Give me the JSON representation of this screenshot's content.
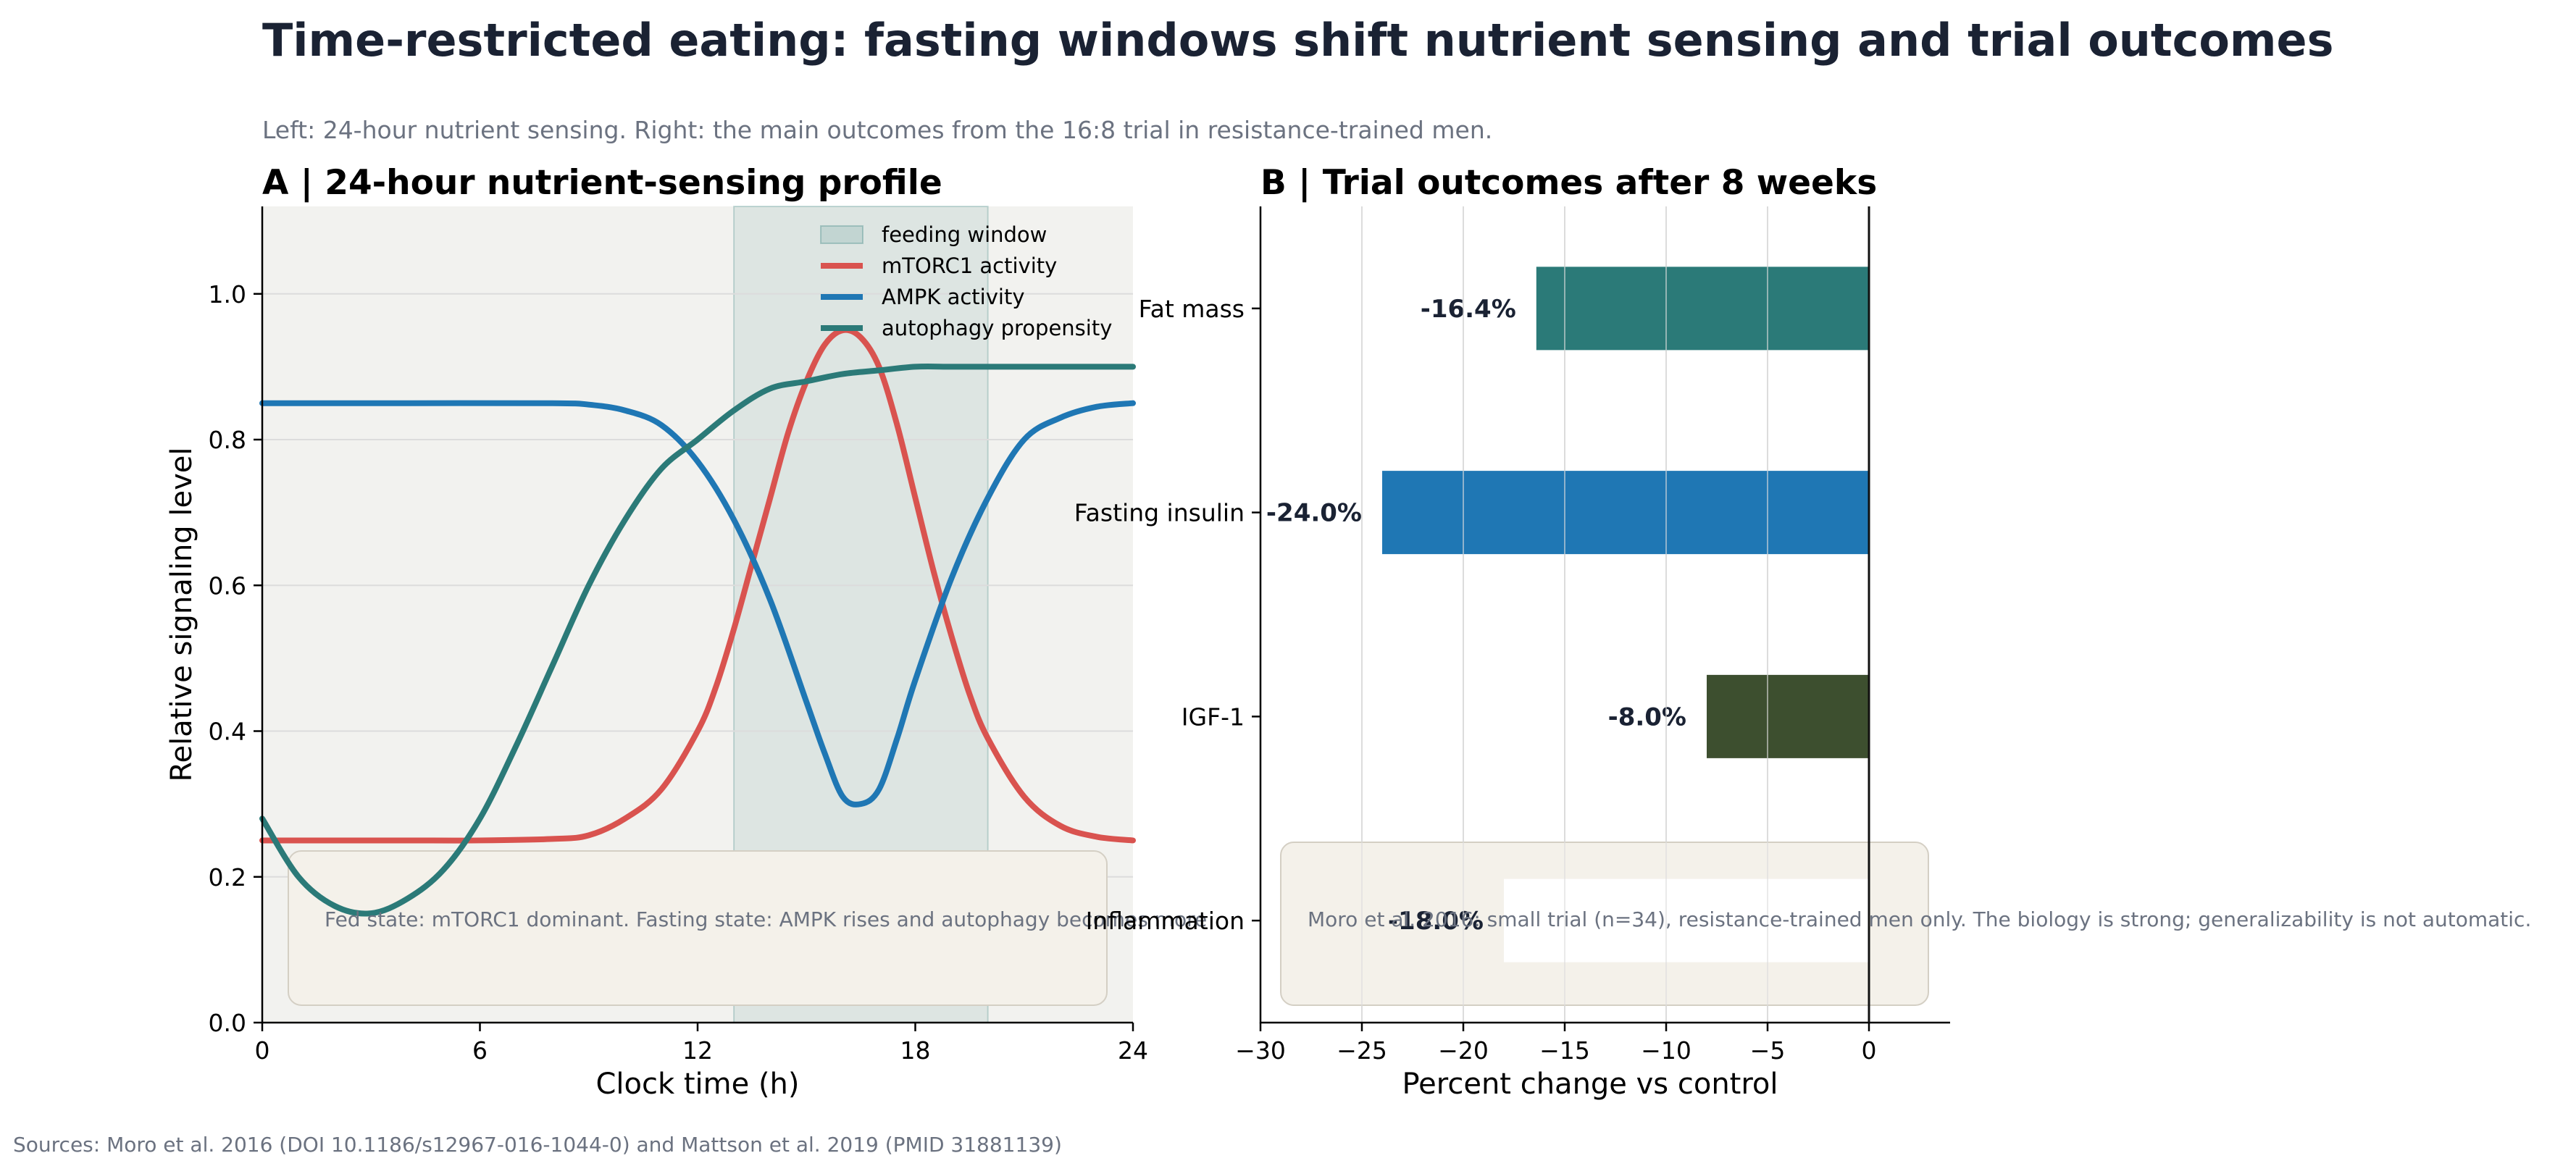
{
  "figure": {
    "title": "Time-restricted eating: fasting windows shift nutrient sensing and trial outcomes",
    "subtitle": "Left: 24-hour nutrient sensing. Right: the main outcomes from the 16:8 trial in resistance-trained men.",
    "source": "Sources: Moro et al. 2016 (DOI 10.1186/s12967-016-1044-0) and Mattson et al. 2019 (PMID 31881139)"
  },
  "chart_data": [
    {
      "type": "line",
      "title": "A  |  24-hour nutrient-sensing profile",
      "xlabel": "Clock time (h)",
      "ylabel": "Relative signaling level",
      "xlim": [
        0,
        24
      ],
      "ylim": [
        0,
        1.12
      ],
      "xticks": [
        0,
        6,
        12,
        18,
        24
      ],
      "yticks": [
        0.0,
        0.2,
        0.4,
        0.6,
        0.8,
        1.0
      ],
      "grid": "horizontal",
      "legend": "top-right",
      "shaded_region": {
        "name": "feeding window",
        "x": [
          13,
          20
        ],
        "color": "#2b7a78"
      },
      "series": [
        {
          "name": "mTORC1 activity",
          "color": "#d9534f",
          "x": [
            0,
            2,
            4,
            6,
            8,
            9,
            10,
            11,
            12,
            12.5,
            13,
            13.5,
            14,
            14.5,
            15,
            15.5,
            16,
            16.5,
            17,
            17.5,
            18,
            18.5,
            19,
            19.5,
            20,
            21,
            22,
            23,
            24
          ],
          "y": [
            0.25,
            0.25,
            0.25,
            0.25,
            0.252,
            0.257,
            0.28,
            0.32,
            0.4,
            0.46,
            0.54,
            0.63,
            0.72,
            0.81,
            0.88,
            0.93,
            0.95,
            0.94,
            0.9,
            0.82,
            0.72,
            0.62,
            0.53,
            0.45,
            0.39,
            0.31,
            0.27,
            0.255,
            0.25
          ]
        },
        {
          "name": "AMPK activity",
          "color": "#1f77b4",
          "x": [
            0,
            4,
            8,
            9,
            10,
            11,
            12,
            13,
            14,
            15,
            15.5,
            16,
            16.5,
            17,
            17.5,
            18,
            19,
            20,
            21,
            22,
            23,
            24
          ],
          "y": [
            0.85,
            0.85,
            0.85,
            0.848,
            0.84,
            0.82,
            0.77,
            0.69,
            0.58,
            0.44,
            0.37,
            0.31,
            0.3,
            0.32,
            0.39,
            0.47,
            0.61,
            0.72,
            0.8,
            0.83,
            0.845,
            0.85
          ]
        },
        {
          "name": "autophagy propensity",
          "color": "#2b7a78",
          "x": [
            0,
            1,
            2,
            3,
            4,
            5,
            6,
            7,
            8,
            9,
            10,
            11,
            12,
            13,
            14,
            15,
            16,
            17,
            18,
            19,
            20,
            21,
            22,
            23,
            24
          ],
          "y": [
            0.28,
            0.2,
            0.16,
            0.15,
            0.17,
            0.21,
            0.28,
            0.38,
            0.49,
            0.6,
            0.69,
            0.76,
            0.8,
            0.84,
            0.87,
            0.88,
            0.89,
            0.895,
            0.9,
            0.9,
            0.9,
            0.9,
            0.9,
            0.9,
            0.9
          ]
        }
      ],
      "annotation": "Fed state: mTORC1 dominant. Fasting state: AMPK rises and autophagy becomes more"
    },
    {
      "type": "bar",
      "orientation": "horizontal",
      "title": "B  |  Trial outcomes after 8 weeks",
      "xlabel": "Percent change vs control",
      "ylabel": "",
      "xlim": [
        -30,
        4
      ],
      "xticks": [
        -30,
        -25,
        -20,
        -15,
        -10,
        -5,
        0
      ],
      "xtick_labels": [
        "−30",
        "−25",
        "−20",
        "−15",
        "−10",
        "−5",
        "0"
      ],
      "grid": "vertical",
      "categories": [
        "Fat mass",
        "Fasting insulin",
        "IGF-1",
        "Inflammation"
      ],
      "values": [
        -16.4,
        -24.0,
        -8.0,
        -18.0
      ],
      "value_labels": [
        "-16.4%",
        "-24.0%",
        "-8.0%",
        "-18.0%"
      ],
      "colors": [
        "#2b7a78",
        "#1f77b4",
        "#3d4f2f",
        "#ffffff"
      ],
      "annotation": "Moro et al. 2016: small trial (n=34), resistance-trained men only. The biology is strong; generalizability is not automatic."
    }
  ]
}
